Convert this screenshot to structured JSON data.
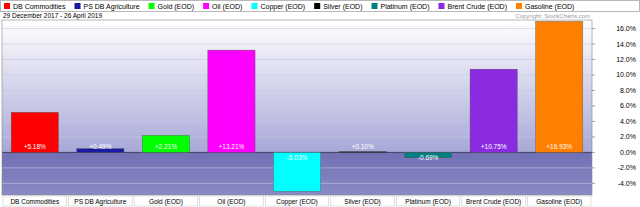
{
  "chart_data": {
    "type": "bar",
    "subtitle": "29 December 2017 - 26 April 2019",
    "annotations": [
      "Copyright: StockCharts.com"
    ],
    "categories": [
      "DB Commodities",
      "PS DB Agriculture",
      "Gold (EOD)",
      "Oil (EOD)",
      "Copper (EOD)",
      "Silver (EOD)",
      "Platinum (EOD)",
      "Brent Crude (EOD)",
      "Gasoline (EOD)"
    ],
    "values": [
      5.18,
      0.49,
      2.21,
      13.21,
      -5.03,
      0.1,
      -0.69,
      10.75,
      16.93
    ],
    "value_labels": [
      "+5.18%",
      "+0.49%",
      "+2.21%",
      "+13.21%",
      "-5.03%",
      "+0.10%",
      "-0.69%",
      "+10.75%",
      "+16.93%"
    ],
    "colors": [
      "#ff0000",
      "#1a1aa6",
      "#00ff00",
      "#ff00ff",
      "#00ffff",
      "#000000",
      "#008080",
      "#8a2be2",
      "#ff8000"
    ],
    "ylim": [
      -5.5,
      17.1
    ],
    "yticks": [
      {
        "value": -4,
        "label": "-4.0%"
      },
      {
        "value": -2,
        "label": "-2.0%"
      },
      {
        "value": 0,
        "label": "0.0%"
      },
      {
        "value": 2,
        "label": "2.0%"
      },
      {
        "value": 4,
        "label": "4.0%"
      },
      {
        "value": 6,
        "label": "6.0%"
      },
      {
        "value": 8,
        "label": "8.0%"
      },
      {
        "value": 10,
        "label": "10.0%"
      },
      {
        "value": 12,
        "label": "12.0%"
      },
      {
        "value": 14,
        "label": "14.0%"
      },
      {
        "value": 16,
        "label": "16.0%"
      }
    ],
    "grid": true,
    "data_labels": true,
    "legend": "top"
  }
}
